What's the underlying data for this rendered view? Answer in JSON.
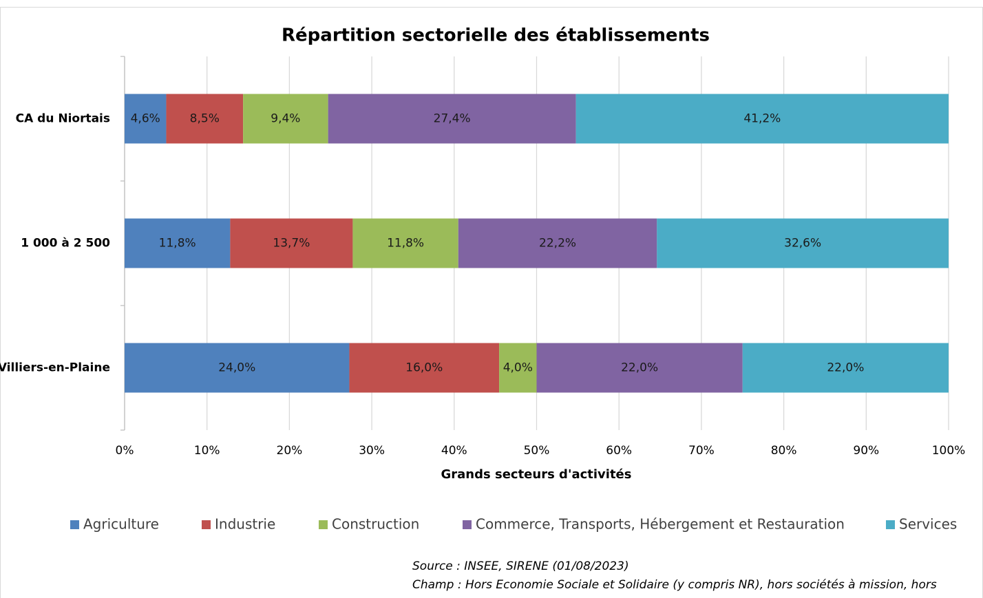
{
  "chart_data": {
    "type": "bar",
    "orientation": "horizontal",
    "stacking": "percent",
    "title": "Répartition sectorielle des établissements",
    "x_label": "Grands secteurs d'activités",
    "categories": [
      "CA du Niortais",
      "1 000 à 2 500",
      "Villiers-en-Plaine"
    ],
    "series": [
      {
        "name": "Agriculture",
        "color": "#4f81bd",
        "values": [
          4.6,
          11.8,
          24.0
        ],
        "value_labels": [
          "4,6%",
          "11,8%",
          "24,0%"
        ]
      },
      {
        "name": "Industrie",
        "color": "#c0504d",
        "values": [
          8.5,
          13.7,
          16.0
        ],
        "value_labels": [
          "8,5%",
          "13,7%",
          "16,0%"
        ]
      },
      {
        "name": "Construction",
        "color": "#9bbb59",
        "values": [
          9.4,
          11.8,
          4.0
        ],
        "value_labels": [
          "9,4%",
          "11,8%",
          "4,0%"
        ]
      },
      {
        "name": "Commerce, Transports, Hébergement et Restauration",
        "color": "#8064a2",
        "values": [
          27.4,
          22.2,
          22.0
        ],
        "value_labels": [
          "27,4%",
          "22,2%",
          "22,0%"
        ]
      },
      {
        "name": "Services",
        "color": "#4bacc6",
        "values": [
          41.2,
          32.6,
          22.0
        ],
        "value_labels": [
          "41,2%",
          "32,6%",
          "22,0%"
        ]
      }
    ],
    "xlim": [
      0,
      100
    ],
    "xticks": [
      {
        "value": 0,
        "label": "0%"
      },
      {
        "value": 10,
        "label": "10%"
      },
      {
        "value": 20,
        "label": "20%"
      },
      {
        "value": 30,
        "label": "30%"
      },
      {
        "value": 40,
        "label": "40%"
      },
      {
        "value": 50,
        "label": "50%"
      },
      {
        "value": 60,
        "label": "60%"
      },
      {
        "value": 70,
        "label": "70%"
      },
      {
        "value": 80,
        "label": "80%"
      },
      {
        "value": 90,
        "label": "90%"
      },
      {
        "value": 100,
        "label": "100%"
      }
    ],
    "grid": true,
    "legend": "bottom",
    "source": "Source : INSEE, SIRENE (01/08/2023)",
    "scope": "Champ : Hors Economie Sociale et Solidaire (y compris NR), hors sociétés à mission, hors"
  }
}
